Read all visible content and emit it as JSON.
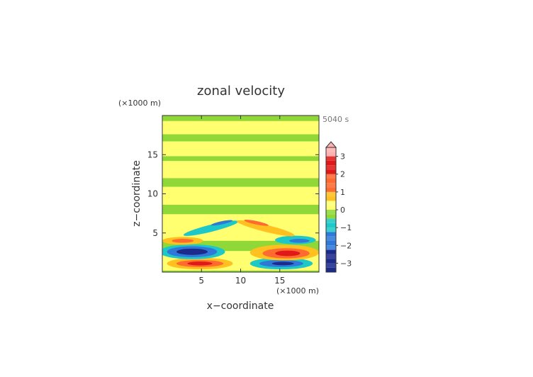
{
  "chart_data": {
    "type": "heatmap",
    "title": "zonal velocity",
    "time_label": "5040 s",
    "xlabel": "x−coordinate",
    "ylabel": "z−coordinate",
    "x_unit": "(×1000 m)",
    "y_unit": "(×1000 m)",
    "xlim": [
      0,
      20
    ],
    "ylim": [
      0,
      20
    ],
    "x_ticks": [
      5,
      10,
      15
    ],
    "y_ticks": [
      5,
      10,
      15
    ],
    "colorbar": {
      "range": [
        -3.5,
        3.5
      ],
      "step": 0.25,
      "ticks": [
        "3",
        "2",
        "1",
        "0",
        "−1",
        "−2",
        "−3"
      ],
      "tick_values": [
        3,
        2,
        1,
        0,
        -1,
        -2,
        -3
      ],
      "extend": "max"
    },
    "colors": {
      "very_negative": "#1c2a8c",
      "negative": "#2f78d8",
      "slightly_negative": "#1fc8c8",
      "near_zero_low": "#8fd838",
      "near_zero_high": "#ffff70",
      "slightly_positive": "#ffc020",
      "positive": "#ff6a30",
      "very_positive": "#e01818",
      "extreme": "#ffb0b0"
    }
  }
}
